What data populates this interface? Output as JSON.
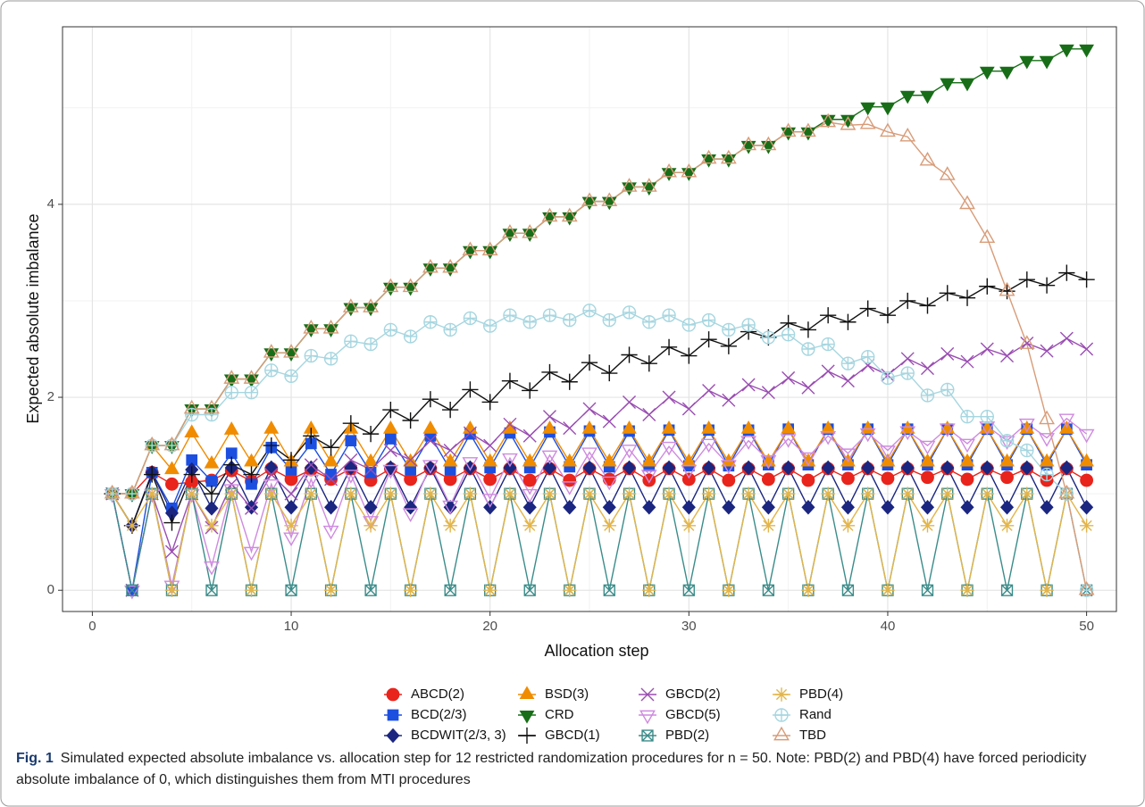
{
  "chart_data": {
    "type": "line",
    "x_label": "Allocation step",
    "y_label": "Expected absolute imbalance",
    "caption_label": "Fig. 1",
    "caption_text": "Simulated expected absolute imbalance vs. allocation step for 12 restricted randomization procedures for n = 50. Note: PBD(2) and PBD(4) have forced periodicity absolute imbalance of 0, which distinguishes them from MTI procedures",
    "x": [
      1,
      2,
      3,
      4,
      5,
      6,
      7,
      8,
      9,
      10,
      11,
      12,
      13,
      14,
      15,
      16,
      17,
      18,
      19,
      20,
      21,
      22,
      23,
      24,
      25,
      26,
      27,
      28,
      29,
      30,
      31,
      32,
      33,
      34,
      35,
      36,
      37,
      38,
      39,
      40,
      41,
      42,
      43,
      44,
      45,
      46,
      47,
      48,
      49,
      50
    ],
    "xlim": [
      -1.5,
      51.5
    ],
    "ylim": [
      -0.22,
      5.84
    ],
    "xticks": [
      0,
      10,
      20,
      30,
      40,
      50
    ],
    "yticks": [
      0,
      2,
      4
    ],
    "grid": true,
    "series": [
      {
        "name": "ABCD(2)",
        "color": "#e8241c",
        "marker": "circle",
        "values": [
          1,
          1,
          1.22,
          1.1,
          1.12,
          1.14,
          1.24,
          1.13,
          1.26,
          1.15,
          1.25,
          1.15,
          1.26,
          1.14,
          1.26,
          1.15,
          1.26,
          1.15,
          1.26,
          1.15,
          1.26,
          1.14,
          1.26,
          1.14,
          1.26,
          1.15,
          1.26,
          1.14,
          1.26,
          1.15,
          1.26,
          1.14,
          1.26,
          1.15,
          1.26,
          1.14,
          1.26,
          1.16,
          1.26,
          1.16,
          1.26,
          1.17,
          1.26,
          1.15,
          1.26,
          1.17,
          1.26,
          1.14,
          1.26,
          1.14
        ]
      },
      {
        "name": "BCD(2/3)",
        "color": "#1c4fe0",
        "marker": "square",
        "values": [
          1,
          0,
          1.22,
          0.85,
          1.35,
          1.13,
          1.42,
          1.1,
          1.48,
          1.25,
          1.52,
          1.2,
          1.55,
          1.22,
          1.57,
          1.25,
          1.6,
          1.25,
          1.62,
          1.27,
          1.63,
          1.27,
          1.64,
          1.28,
          1.65,
          1.28,
          1.65,
          1.29,
          1.66,
          1.29,
          1.66,
          1.29,
          1.66,
          1.3,
          1.67,
          1.3,
          1.67,
          1.3,
          1.67,
          1.3,
          1.67,
          1.3,
          1.67,
          1.3,
          1.67,
          1.3,
          1.67,
          1.3,
          1.67,
          1.3
        ]
      },
      {
        "name": "BCDWIT(2/3, 3)",
        "color": "#1a2680",
        "marker": "diamond",
        "values": [
          1,
          0.67,
          1.22,
          0.8,
          1.25,
          0.85,
          1.27,
          0.86,
          1.27,
          0.86,
          1.27,
          0.86,
          1.27,
          0.86,
          1.27,
          0.86,
          1.27,
          0.86,
          1.27,
          0.86,
          1.27,
          0.86,
          1.27,
          0.86,
          1.27,
          0.86,
          1.27,
          0.86,
          1.27,
          0.86,
          1.27,
          0.86,
          1.27,
          0.86,
          1.27,
          0.86,
          1.27,
          0.86,
          1.27,
          0.86,
          1.27,
          0.86,
          1.27,
          0.86,
          1.27,
          0.86,
          1.27,
          0.86,
          1.27,
          0.86
        ]
      },
      {
        "name": "BSD(3)",
        "color": "#f08c00",
        "marker": "triangle-up",
        "values": [
          1,
          1,
          1.5,
          1.25,
          1.63,
          1.31,
          1.66,
          1.33,
          1.67,
          1.33,
          1.67,
          1.33,
          1.67,
          1.33,
          1.67,
          1.33,
          1.67,
          1.33,
          1.67,
          1.33,
          1.67,
          1.33,
          1.67,
          1.33,
          1.67,
          1.33,
          1.67,
          1.33,
          1.67,
          1.33,
          1.67,
          1.33,
          1.67,
          1.33,
          1.67,
          1.33,
          1.67,
          1.33,
          1.67,
          1.33,
          1.67,
          1.33,
          1.67,
          1.33,
          1.67,
          1.33,
          1.67,
          1.33,
          1.67,
          1.33
        ]
      },
      {
        "name": "CRD",
        "color": "#186e18",
        "marker": "triangle-down",
        "values": [
          1,
          1,
          1.5,
          1.5,
          1.88,
          1.88,
          2.19,
          2.19,
          2.46,
          2.46,
          2.71,
          2.71,
          2.93,
          2.93,
          3.14,
          3.14,
          3.34,
          3.34,
          3.52,
          3.52,
          3.7,
          3.7,
          3.87,
          3.87,
          4.03,
          4.03,
          4.18,
          4.18,
          4.33,
          4.33,
          4.47,
          4.47,
          4.61,
          4.61,
          4.75,
          4.75,
          4.88,
          4.88,
          5.01,
          5.01,
          5.13,
          5.13,
          5.26,
          5.26,
          5.38,
          5.38,
          5.49,
          5.49,
          5.61,
          5.61
        ]
      },
      {
        "name": "GBCD(1)",
        "color": "#111111",
        "marker": "plus",
        "values": [
          1,
          0.67,
          1.2,
          0.7,
          1.2,
          1.0,
          1.3,
          1.2,
          1.5,
          1.35,
          1.6,
          1.48,
          1.73,
          1.62,
          1.87,
          1.76,
          1.98,
          1.87,
          2.08,
          1.95,
          2.17,
          2.07,
          2.26,
          2.16,
          2.36,
          2.25,
          2.44,
          2.35,
          2.52,
          2.43,
          2.6,
          2.53,
          2.68,
          2.62,
          2.77,
          2.7,
          2.85,
          2.78,
          2.92,
          2.85,
          3.0,
          2.95,
          3.08,
          3.03,
          3.15,
          3.1,
          3.22,
          3.16,
          3.29,
          3.22
        ]
      },
      {
        "name": "GBCD(2)",
        "color": "#9a4db2",
        "marker": "cross",
        "values": [
          1,
          0,
          1.0,
          0.4,
          1.0,
          0.65,
          1.1,
          0.85,
          1.2,
          1.0,
          1.3,
          1.15,
          1.35,
          1.25,
          1.45,
          1.35,
          1.55,
          1.45,
          1.63,
          1.5,
          1.72,
          1.6,
          1.8,
          1.68,
          1.88,
          1.75,
          1.95,
          1.82,
          2.0,
          1.88,
          2.07,
          1.97,
          2.13,
          2.05,
          2.2,
          2.1,
          2.27,
          2.17,
          2.33,
          2.23,
          2.4,
          2.3,
          2.45,
          2.37,
          2.5,
          2.43,
          2.56,
          2.48,
          2.61,
          2.5
        ]
      },
      {
        "name": "GBCD(5)",
        "color": "#cf8ae0",
        "marker": "triangle-down-open",
        "values": [
          1,
          0,
          1,
          0.05,
          1,
          0.25,
          1.05,
          0.4,
          1.1,
          0.55,
          1.15,
          0.62,
          1.2,
          0.72,
          1.25,
          0.8,
          1.3,
          0.88,
          1.33,
          0.95,
          1.37,
          1.0,
          1.4,
          1.08,
          1.43,
          1.13,
          1.46,
          1.2,
          1.49,
          1.25,
          1.52,
          1.3,
          1.55,
          1.35,
          1.57,
          1.38,
          1.6,
          1.42,
          1.63,
          1.45,
          1.65,
          1.5,
          1.68,
          1.52,
          1.7,
          1.55,
          1.73,
          1.58,
          1.78,
          1.62
        ]
      },
      {
        "name": "PBD(2)",
        "color": "#3a8c8a",
        "marker": "square-cross",
        "values": [
          1,
          0,
          1,
          0,
          1,
          0,
          1,
          0,
          1,
          0,
          1,
          0,
          1,
          0,
          1,
          0,
          1,
          0,
          1,
          0,
          1,
          0,
          1,
          0,
          1,
          0,
          1,
          0,
          1,
          0,
          1,
          0,
          1,
          0,
          1,
          0,
          1,
          0,
          1,
          0,
          1,
          0,
          1,
          0,
          1,
          0,
          1,
          0,
          1,
          0
        ]
      },
      {
        "name": "PBD(4)",
        "color": "#e3b54a",
        "marker": "asterisk",
        "values": [
          1,
          0.67,
          1,
          0,
          1,
          0.67,
          1,
          0,
          1,
          0.67,
          1,
          0,
          1,
          0.67,
          1,
          0,
          1,
          0.67,
          1,
          0,
          1,
          0.67,
          1,
          0,
          1,
          0.67,
          1,
          0,
          1,
          0.67,
          1,
          0,
          1,
          0.67,
          1,
          0,
          1,
          0.67,
          1,
          0,
          1,
          0.67,
          1,
          0,
          1,
          0.67,
          1,
          0,
          1,
          0.67
        ]
      },
      {
        "name": "Rand",
        "color": "#a6d6e0",
        "marker": "circle-plus",
        "values": [
          1,
          1,
          1.5,
          1.5,
          1.82,
          1.82,
          2.05,
          2.05,
          2.28,
          2.22,
          2.43,
          2.4,
          2.58,
          2.55,
          2.7,
          2.63,
          2.78,
          2.7,
          2.82,
          2.74,
          2.85,
          2.78,
          2.85,
          2.8,
          2.9,
          2.8,
          2.88,
          2.78,
          2.85,
          2.75,
          2.8,
          2.7,
          2.75,
          2.62,
          2.65,
          2.5,
          2.55,
          2.35,
          2.42,
          2.2,
          2.25,
          2.02,
          2.08,
          1.8,
          1.8,
          1.55,
          1.45,
          1.2,
          1.0,
          0
        ]
      },
      {
        "name": "TBD",
        "color": "#d89c78",
        "marker": "triangle-up-open",
        "values": [
          1,
          1,
          1.5,
          1.5,
          1.88,
          1.88,
          2.19,
          2.19,
          2.46,
          2.46,
          2.71,
          2.71,
          2.93,
          2.93,
          3.14,
          3.14,
          3.34,
          3.34,
          3.52,
          3.52,
          3.7,
          3.7,
          3.87,
          3.87,
          4.03,
          4.03,
          4.18,
          4.18,
          4.33,
          4.33,
          4.47,
          4.47,
          4.61,
          4.61,
          4.75,
          4.75,
          4.85,
          4.82,
          4.83,
          4.75,
          4.7,
          4.45,
          4.3,
          4.0,
          3.65,
          3.1,
          2.55,
          1.77,
          1.0,
          0
        ]
      }
    ]
  }
}
